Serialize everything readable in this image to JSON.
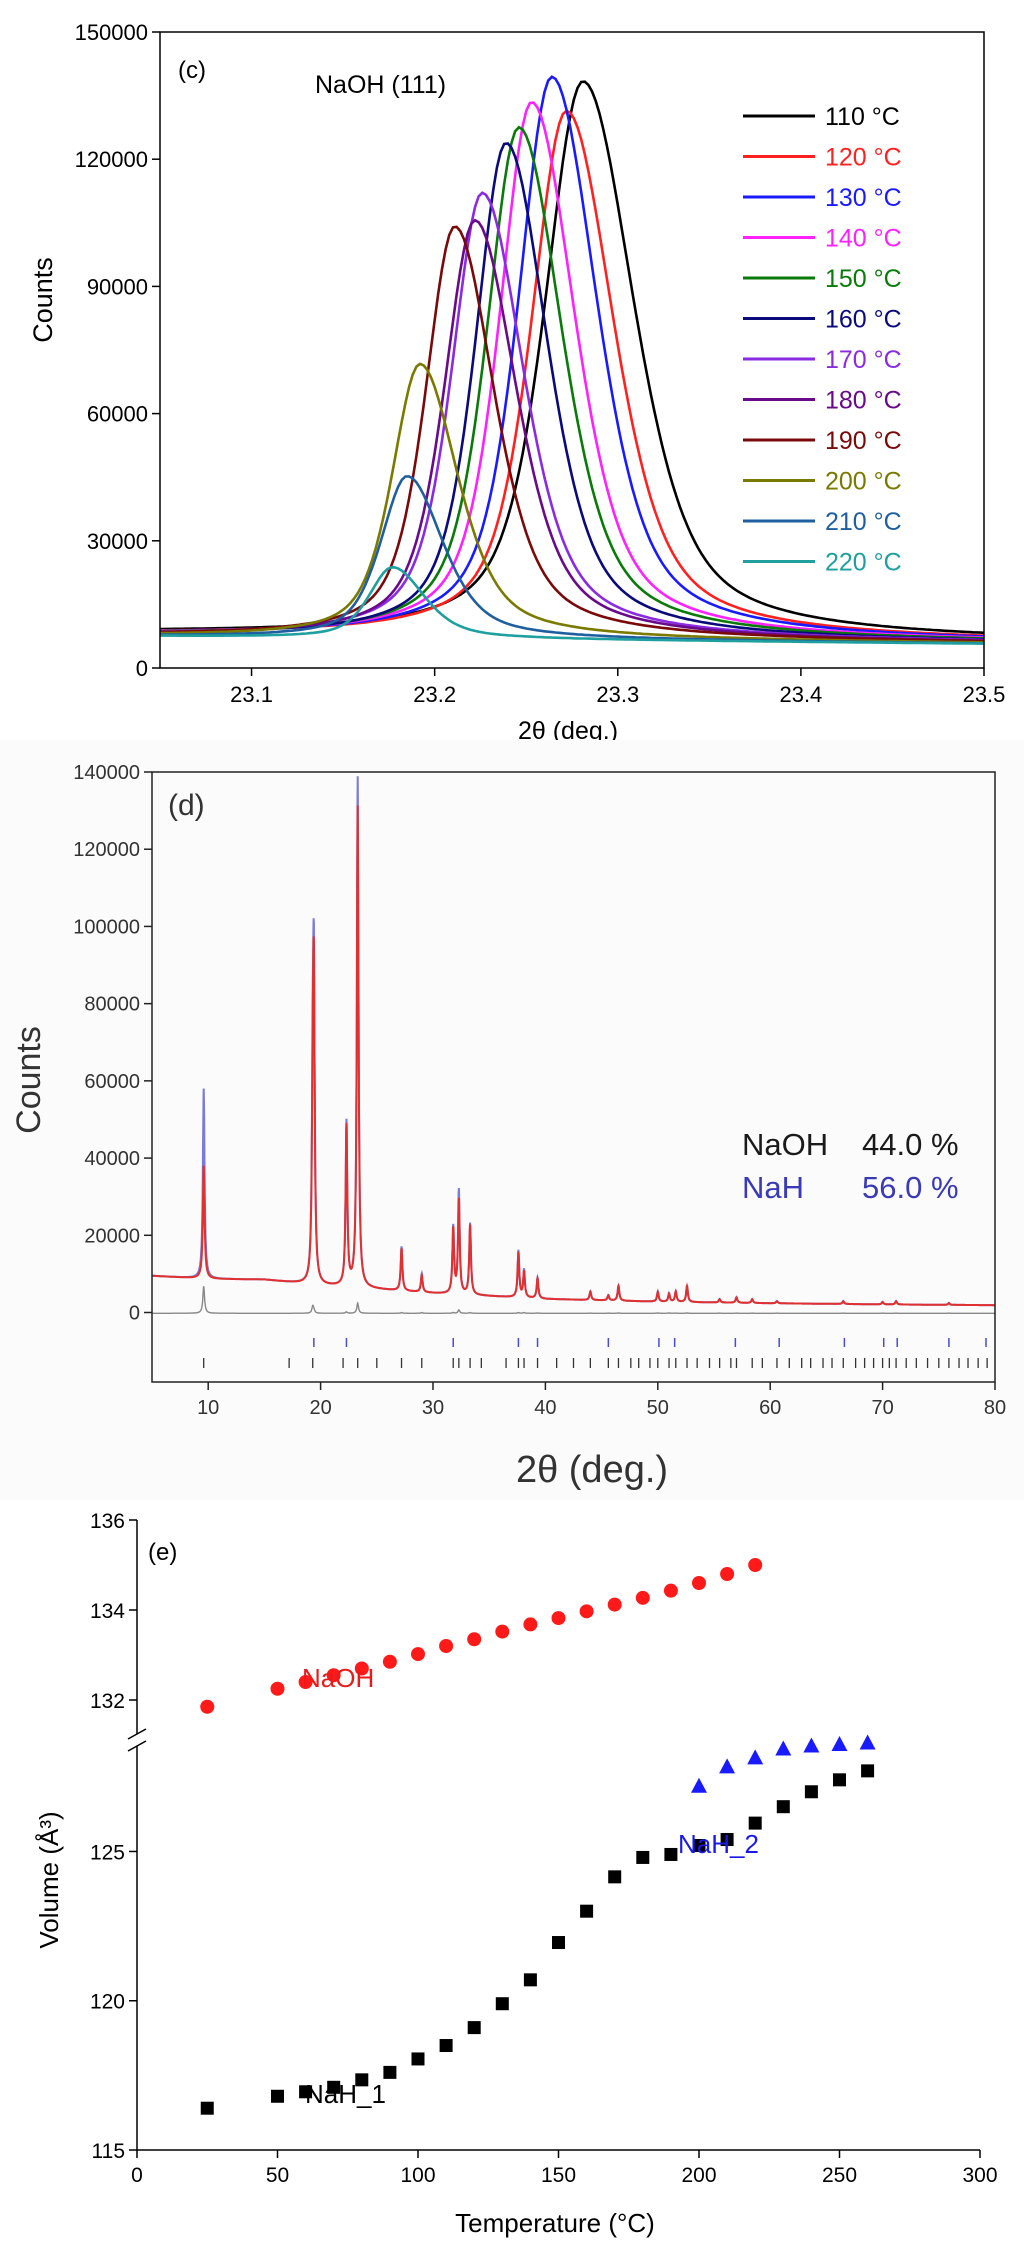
{
  "chart_data": [
    {
      "type": "line",
      "panel_label": "(c)",
      "annotation": "NaOH (111)",
      "xlabel": "2θ (deg.)",
      "ylabel": "Counts",
      "xlim": [
        23.05,
        23.5
      ],
      "ylim": [
        0,
        150000
      ],
      "xticks": [
        "23.1",
        "23.2",
        "23.3",
        "23.4",
        "23.5"
      ],
      "yticks": [
        "0",
        "30000",
        "60000",
        "90000",
        "120000",
        "150000"
      ],
      "legend_position": "top-right",
      "series": [
        {
          "name": "110 °C",
          "color": "#000000",
          "peak_x": 23.281,
          "peak_y": 137500,
          "sigma": 0.026,
          "base": 6500
        },
        {
          "name": "120 °C",
          "color": "#ff2020",
          "peak_x": 23.272,
          "peak_y": 130500,
          "sigma": 0.024,
          "base": 6300
        },
        {
          "name": "130 °C",
          "color": "#1a1aff",
          "peak_x": 23.264,
          "peak_y": 138500,
          "sigma": 0.023,
          "base": 6200
        },
        {
          "name": "140 °C",
          "color": "#ff20ff",
          "peak_x": 23.253,
          "peak_y": 132500,
          "sigma": 0.022,
          "base": 6200
        },
        {
          "name": "150 °C",
          "color": "#0a7a0a",
          "peak_x": 23.246,
          "peak_y": 126500,
          "sigma": 0.022,
          "base": 6100
        },
        {
          "name": "160 °C",
          "color": "#0a0a7a",
          "peak_x": 23.239,
          "peak_y": 122800,
          "sigma": 0.021,
          "base": 6000
        },
        {
          "name": "170 °C",
          "color": "#8a2be2",
          "peak_x": 23.226,
          "peak_y": 111000,
          "sigma": 0.021,
          "base": 6000
        },
        {
          "name": "180 °C",
          "color": "#6a0a8a",
          "peak_x": 23.222,
          "peak_y": 104500,
          "sigma": 0.021,
          "base": 5900
        },
        {
          "name": "190 °C",
          "color": "#7a0a0a",
          "peak_x": 23.211,
          "peak_y": 103000,
          "sigma": 0.02,
          "base": 5900
        },
        {
          "name": "200 °C",
          "color": "#7a7a00",
          "peak_x": 23.192,
          "peak_y": 70500,
          "sigma": 0.019,
          "base": 5800
        },
        {
          "name": "210 °C",
          "color": "#1f5f9f",
          "peak_x": 23.185,
          "peak_y": 44000,
          "sigma": 0.018,
          "base": 5700
        },
        {
          "name": "220 °C",
          "color": "#1f9f9f",
          "peak_x": 23.177,
          "peak_y": 22500,
          "sigma": 0.016,
          "base": 5700
        }
      ]
    },
    {
      "type": "line",
      "panel_label": "(d)",
      "xlabel": "2θ (deg.)",
      "ylabel": "Counts",
      "xlim": [
        5,
        80
      ],
      "ylim": [
        -18000,
        140000
      ],
      "xticks": [
        "10",
        "20",
        "30",
        "40",
        "50",
        "60",
        "70",
        "80"
      ],
      "yticks": [
        "0",
        "20000",
        "40000",
        "60000",
        "80000",
        "100000",
        "120000",
        "140000"
      ],
      "legend": [
        {
          "phase": "NaOH",
          "value": "44.0 %",
          "color": "#1a1a1a"
        },
        {
          "phase": "NaH",
          "value": "56.0 %",
          "color": "#3a3ab8"
        }
      ],
      "observed_color": "#7a7ad8",
      "calculated_color": "#e03030",
      "difference_color": "#888888",
      "background": [
        [
          5,
          9500
        ],
        [
          10,
          8700
        ],
        [
          15,
          8500
        ],
        [
          20,
          7000
        ],
        [
          30,
          5000
        ],
        [
          40,
          3500
        ],
        [
          50,
          2800
        ],
        [
          60,
          2400
        ],
        [
          70,
          2100
        ],
        [
          80,
          1900
        ]
      ],
      "peaks": [
        {
          "x": 9.6,
          "obs": 58000,
          "calc": 38000
        },
        {
          "x": 19.3,
          "obs": 51000,
          "calc": 46000
        },
        {
          "x": 19.4,
          "obs": 81000,
          "calc": 79000
        },
        {
          "x": 22.3,
          "obs": 49000,
          "calc": 48000
        },
        {
          "x": 23.3,
          "obs": 138500,
          "calc": 131000
        },
        {
          "x": 27.2,
          "obs": 17000,
          "calc": 16500
        },
        {
          "x": 29.0,
          "obs": 10000,
          "calc": 9500
        },
        {
          "x": 31.8,
          "obs": 22000,
          "calc": 21500
        },
        {
          "x": 32.3,
          "obs": 31500,
          "calc": 29000
        },
        {
          "x": 33.3,
          "obs": 23000,
          "calc": 22500
        },
        {
          "x": 37.6,
          "obs": 16000,
          "calc": 15500
        },
        {
          "x": 38.1,
          "obs": 11000,
          "calc": 10500
        },
        {
          "x": 39.3,
          "obs": 9000,
          "calc": 8800
        },
        {
          "x": 44.0,
          "obs": 5500,
          "calc": 5400
        },
        {
          "x": 45.6,
          "obs": 4500,
          "calc": 4400
        },
        {
          "x": 46.5,
          "obs": 7000,
          "calc": 6800
        },
        {
          "x": 50.0,
          "obs": 5500,
          "calc": 5300
        },
        {
          "x": 51.0,
          "obs": 5000,
          "calc": 4800
        },
        {
          "x": 51.6,
          "obs": 5500,
          "calc": 5400
        },
        {
          "x": 52.6,
          "obs": 7000,
          "calc": 6800
        },
        {
          "x": 55.5,
          "obs": 3500,
          "calc": 3400
        },
        {
          "x": 57.0,
          "obs": 4000,
          "calc": 3900
        },
        {
          "x": 58.4,
          "obs": 3500,
          "calc": 3400
        },
        {
          "x": 60.6,
          "obs": 3000,
          "calc": 2900
        },
        {
          "x": 66.5,
          "obs": 3000,
          "calc": 2900
        },
        {
          "x": 70.0,
          "obs": 2800,
          "calc": 2700
        },
        {
          "x": 71.2,
          "obs": 3000,
          "calc": 2900
        },
        {
          "x": 75.9,
          "obs": 2500,
          "calc": 2400
        }
      ],
      "reflections_NaH": [
        19.4,
        22.3,
        31.8,
        37.6,
        39.3,
        45.6,
        50.1,
        51.5,
        56.9,
        60.8,
        66.6,
        70.1,
        71.3,
        75.9,
        79.2
      ],
      "reflections_NaOH": [
        9.6,
        17.2,
        19.3,
        22.0,
        23.3,
        25.0,
        27.2,
        29.0,
        31.8,
        32.3,
        33.3,
        34.3,
        36.5,
        37.6,
        38.1,
        39.3,
        41.0,
        42.5,
        44.0,
        45.6,
        46.5,
        47.6,
        48.3,
        49.3,
        50.0,
        51.0,
        51.6,
        52.6,
        53.5,
        54.6,
        55.5,
        56.5,
        57.0,
        58.4,
        59.3,
        60.6,
        61.7,
        62.8,
        63.6,
        64.7,
        65.5,
        66.5,
        67.6,
        68.4,
        69.2,
        70.0,
        70.6,
        71.2,
        72.1,
        73.0,
        74.0,
        75.0,
        75.9,
        76.8,
        77.6,
        78.5,
        79.3
      ]
    },
    {
      "type": "scatter",
      "panel_label": "(e)",
      "xlabel": "Temperature (°C)",
      "ylabel": "Volume (Å³)",
      "xlim": [
        0,
        300
      ],
      "xticks": [
        "0",
        "50",
        "100",
        "150",
        "200",
        "250",
        "300"
      ],
      "upper_yticks": [
        "132",
        "134",
        "136"
      ],
      "lower_yticks": [
        "115",
        "120",
        "125"
      ],
      "upper_ylim": [
        131.2,
        136
      ],
      "lower_ylim": [
        115,
        128.6
      ],
      "series": [
        {
          "name": "NaOH",
          "marker": "circle",
          "color": "#ff1a1a",
          "label_color": "#e81a1a",
          "points": [
            [
              25,
              131.85
            ],
            [
              50,
              132.25
            ],
            [
              60,
              132.4
            ],
            [
              70,
              132.55
            ],
            [
              80,
              132.7
            ],
            [
              90,
              132.85
            ],
            [
              100,
              133.02
            ],
            [
              110,
              133.2
            ],
            [
              120,
              133.35
            ],
            [
              130,
              133.52
            ],
            [
              140,
              133.68
            ],
            [
              150,
              133.82
            ],
            [
              160,
              133.97
            ],
            [
              170,
              134.12
            ],
            [
              180,
              134.27
            ],
            [
              190,
              134.43
            ],
            [
              200,
              134.6
            ],
            [
              210,
              134.8
            ],
            [
              220,
              135.0
            ]
          ]
        },
        {
          "name": "NaH_2",
          "marker": "triangle",
          "color": "#1a1aff",
          "label_color": "#1a1ae8",
          "points": [
            [
              200,
              127.2
            ],
            [
              210,
              127.85
            ],
            [
              220,
              128.15
            ],
            [
              230,
              128.45
            ],
            [
              240,
              128.55
            ],
            [
              250,
              128.6
            ],
            [
              260,
              128.65
            ]
          ]
        },
        {
          "name": "NaH_1",
          "marker": "square",
          "color": "#000000",
          "label_color": "#000000",
          "points": [
            [
              25,
              116.4
            ],
            [
              50,
              116.8
            ],
            [
              60,
              116.95
            ],
            [
              70,
              117.1
            ],
            [
              80,
              117.35
            ],
            [
              90,
              117.6
            ],
            [
              100,
              118.05
            ],
            [
              110,
              118.5
            ],
            [
              120,
              119.1
            ],
            [
              130,
              119.9
            ],
            [
              140,
              120.7
            ],
            [
              150,
              121.95
            ],
            [
              160,
              123.0
            ],
            [
              170,
              124.15
            ],
            [
              180,
              124.8
            ],
            [
              190,
              124.9
            ],
            [
              200,
              125.2
            ],
            [
              210,
              125.4
            ],
            [
              220,
              125.95
            ],
            [
              230,
              126.5
            ],
            [
              240,
              127.0
            ],
            [
              250,
              127.4
            ],
            [
              260,
              127.7
            ]
          ]
        }
      ]
    }
  ]
}
